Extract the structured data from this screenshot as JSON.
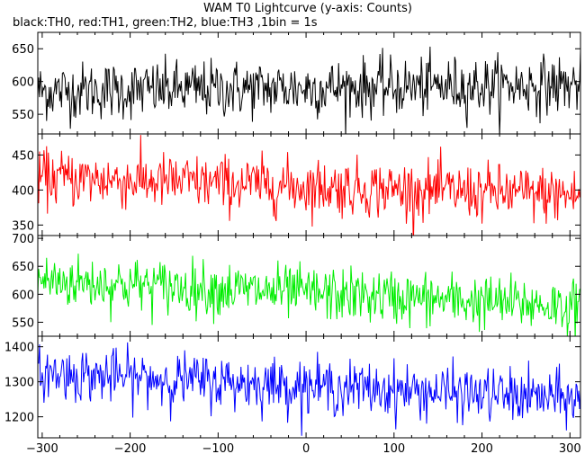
{
  "chart_data": {
    "type": "line",
    "title": "WAM T0 Lightcurve (y-axis: Counts)",
    "subtitle": "black:TH0, red:TH1, green:TH2, blue:TH3 ,1bin = 1s",
    "xlabel": "",
    "ylabel": "",
    "xlim": [
      -305,
      312
    ],
    "x_ticks": [
      -300,
      -200,
      -100,
      0,
      100,
      200,
      300
    ],
    "grid": false,
    "panels": [
      {
        "name": "TH0",
        "color": "#000000",
        "ylim": [
          520,
          675
        ],
        "y_ticks": [
          550,
          600,
          650
        ],
        "mean_start": 585,
        "mean_end": 595,
        "noise": 22
      },
      {
        "name": "TH1",
        "color": "#ff0000",
        "ylim": [
          335,
          480
        ],
        "y_ticks": [
          350,
          400,
          450
        ],
        "mean_start": 418,
        "mean_end": 392,
        "noise": 20
      },
      {
        "name": "TH2",
        "color": "#00ee00",
        "ylim": [
          525,
          705
        ],
        "y_ticks": [
          550,
          600,
          650,
          700
        ],
        "mean_start": 625,
        "mean_end": 578,
        "noise": 24
      },
      {
        "name": "TH3",
        "color": "#0000ff",
        "ylim": [
          1140,
          1430
        ],
        "y_ticks": [
          1200,
          1300,
          1400
        ],
        "mean_start": 1325,
        "mean_end": 1250,
        "noise": 38
      }
    ]
  }
}
